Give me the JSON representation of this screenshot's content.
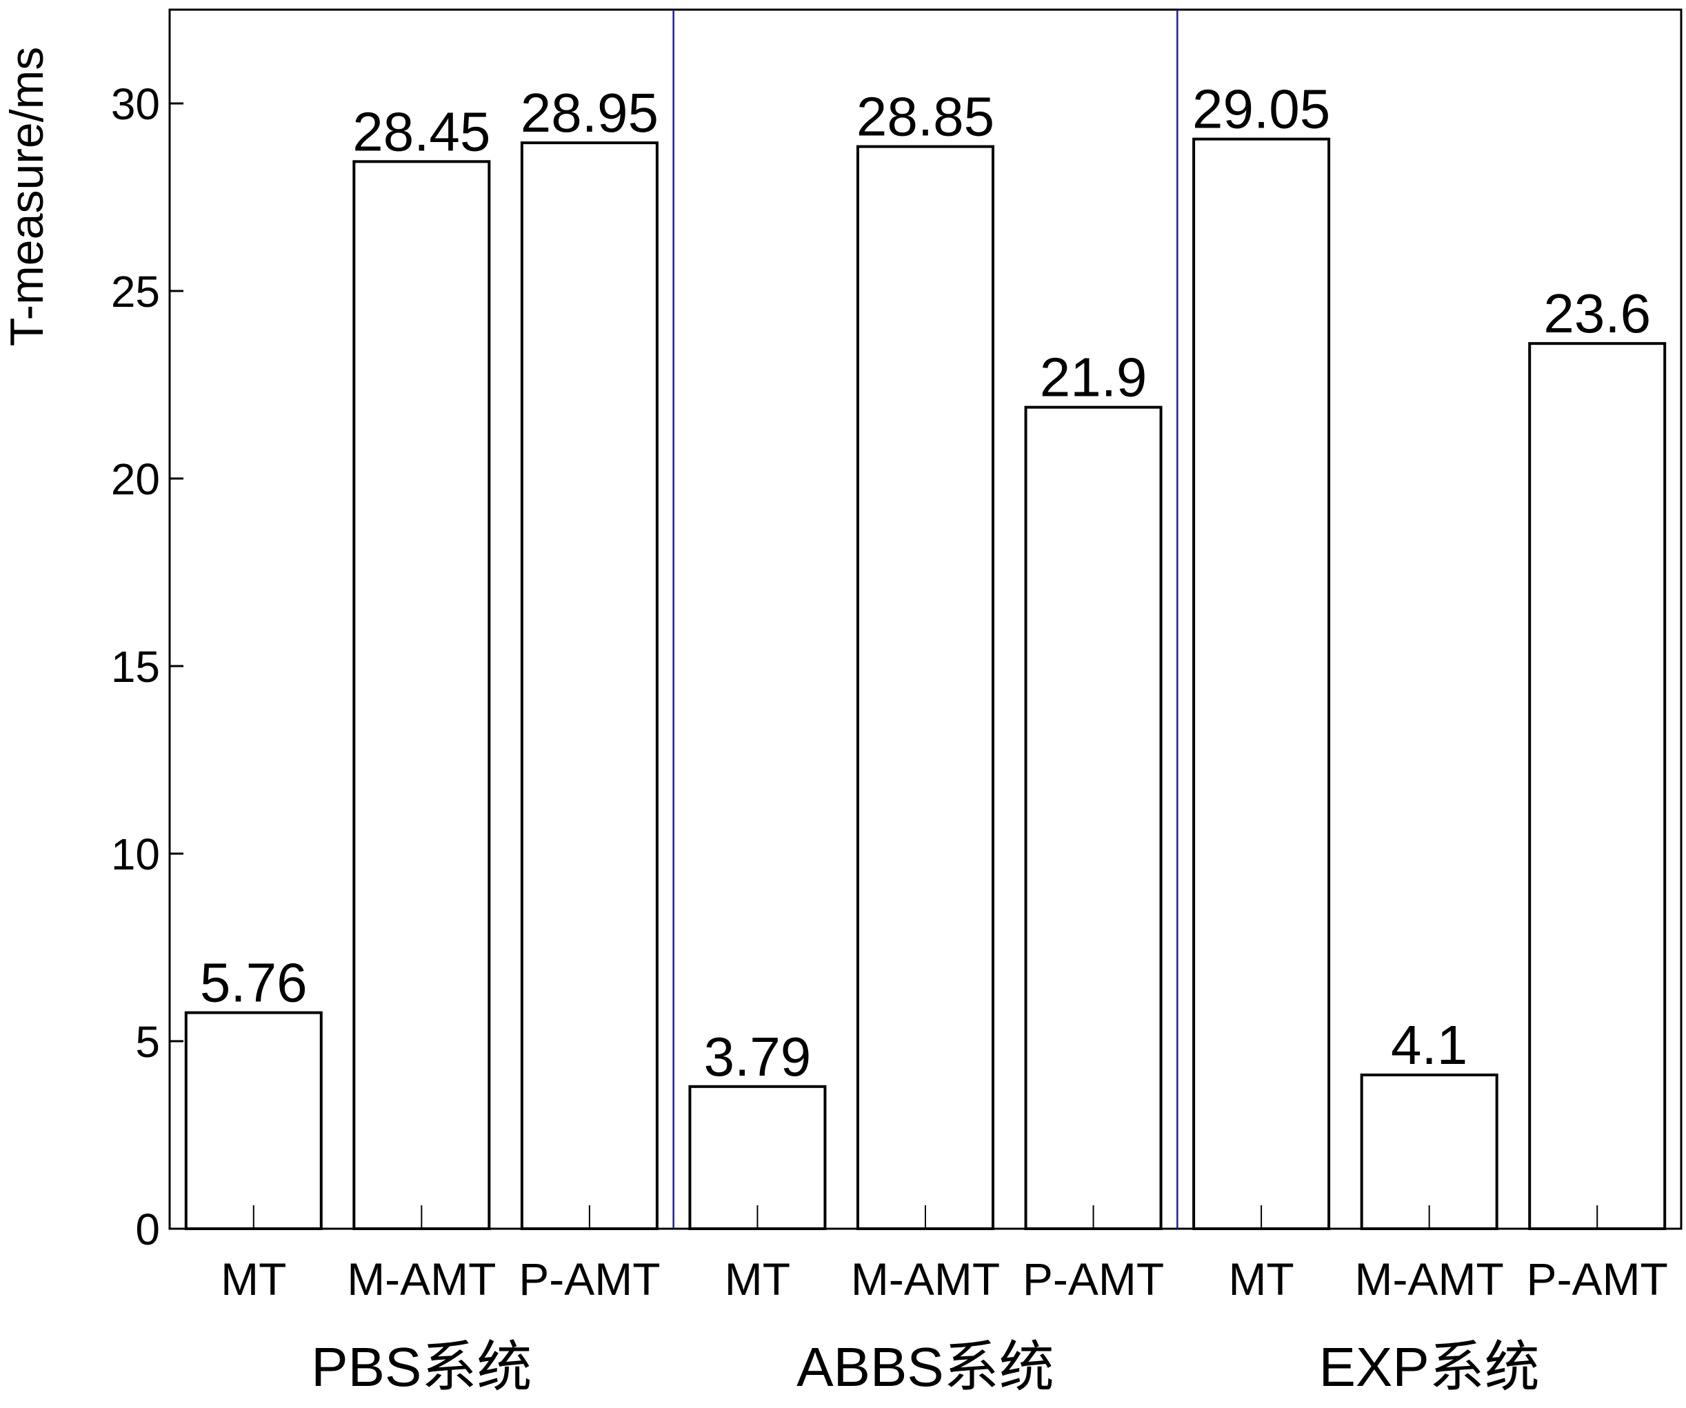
{
  "chart_data": {
    "type": "bar",
    "ylabel": "T-measure/ms",
    "ylim": [
      0,
      32.5
    ],
    "yticks": [
      0,
      5,
      10,
      15,
      20,
      25,
      30
    ],
    "ytick_labels": [
      "0",
      "5",
      "10",
      "15",
      "20",
      "25",
      "30"
    ],
    "grid": false,
    "legend": "none",
    "groups": [
      {
        "name": "PBS系统",
        "categories": [
          "MT",
          "M-AMT",
          "P-AMT"
        ],
        "values": [
          5.76,
          28.45,
          28.95
        ],
        "value_labels": [
          "5.76",
          "28.45",
          "28.95"
        ]
      },
      {
        "name": "ABBS系统",
        "categories": [
          "MT",
          "M-AMT",
          "P-AMT"
        ],
        "values": [
          3.79,
          28.85,
          21.9
        ],
        "value_labels": [
          "3.79",
          "28.85",
          "21.9"
        ]
      },
      {
        "name": "EXP系统",
        "categories": [
          "MT",
          "M-AMT",
          "P-AMT"
        ],
        "values": [
          29.05,
          4.1,
          23.6
        ],
        "value_labels": [
          "29.05",
          "4.1",
          "23.6"
        ]
      }
    ],
    "colors": {
      "bar_fill": "#ffffff",
      "bar_stroke": "#000000",
      "group_separator": "#1a1aa8",
      "axis": "#000000"
    }
  }
}
